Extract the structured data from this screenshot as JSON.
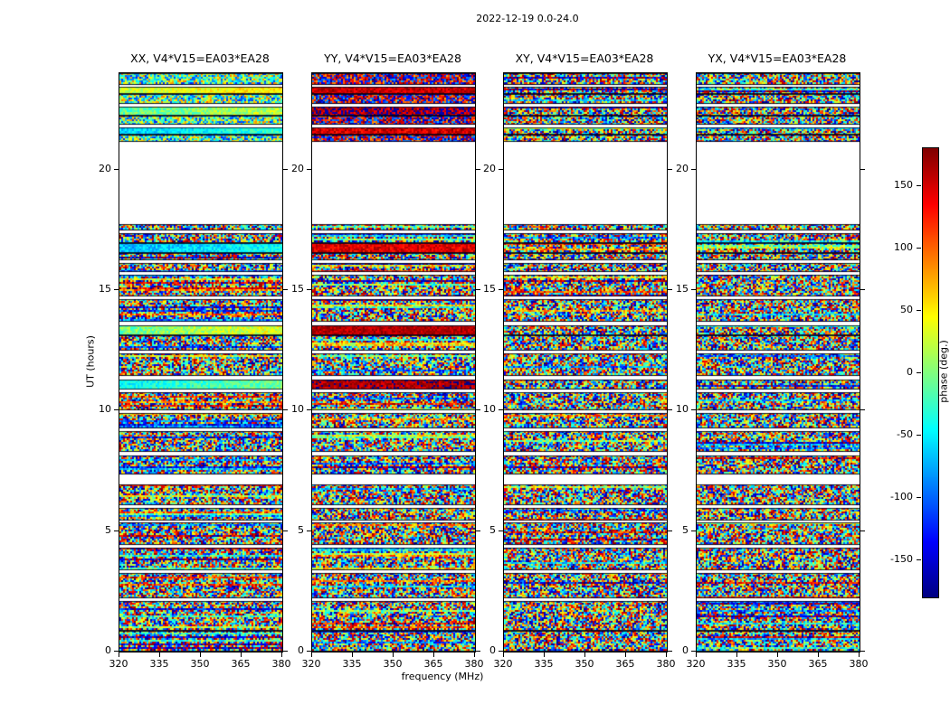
{
  "chart_data": {
    "type": "heatmap",
    "title": "2022-12-19 0.0-24.0",
    "xlabel": "frequency (MHz)",
    "ylabel": "UT (hours)",
    "value_label": "phase (deg.)",
    "colormap": "jet",
    "value_range": [
      -180,
      180
    ],
    "xlim": [
      320,
      380
    ],
    "ylim": [
      0,
      24
    ],
    "x_ticks": [
      320,
      335,
      350,
      365,
      380
    ],
    "y_ticks": [
      0,
      5,
      10,
      15,
      20
    ],
    "colorbar_ticks": [
      150,
      100,
      50,
      0,
      -50,
      -100,
      -150
    ],
    "panels": [
      {
        "label": "XX",
        "title": "XX, V4*V15=EA03*EA28"
      },
      {
        "label": "YY",
        "title": "YY, V4*V15=EA03*EA28"
      },
      {
        "label": "XY",
        "title": "XY, V4*V15=EA03*EA28"
      },
      {
        "label": "YX",
        "title": "YX, V4*V15=EA03*EA28"
      }
    ],
    "bands": [
      {
        "t0": 0.0,
        "t1": 0.85,
        "k": "n"
      },
      {
        "t0": 0.85,
        "t1": 2.1,
        "k": "n"
      },
      {
        "t0": 2.1,
        "t1": 2.22,
        "k": "g"
      },
      {
        "t0": 2.22,
        "t1": 3.25,
        "k": "n"
      },
      {
        "t0": 3.25,
        "t1": 3.38,
        "k": "g"
      },
      {
        "t0": 3.38,
        "t1": 4.3,
        "k": "n"
      },
      {
        "t0": 4.3,
        "t1": 4.42,
        "k": "g"
      },
      {
        "t0": 4.42,
        "t1": 5.35,
        "k": "n"
      },
      {
        "t0": 5.35,
        "t1": 5.45,
        "k": "g"
      },
      {
        "t0": 5.45,
        "t1": 5.95,
        "k": "n"
      },
      {
        "t0": 5.95,
        "t1": 6.07,
        "k": "g"
      },
      {
        "t0": 6.07,
        "t1": 6.95,
        "k": "n"
      },
      {
        "t0": 6.95,
        "t1": 7.35,
        "k": "g"
      },
      {
        "t0": 7.35,
        "t1": 8.15,
        "k": "n"
      },
      {
        "t0": 8.15,
        "t1": 8.28,
        "k": "g"
      },
      {
        "t0": 8.28,
        "t1": 9.15,
        "k": "n"
      },
      {
        "t0": 9.15,
        "t1": 9.28,
        "k": "g"
      },
      {
        "t0": 9.28,
        "t1": 9.9,
        "k": "n"
      },
      {
        "t0": 9.9,
        "t1": 10.02,
        "k": "g"
      },
      {
        "t0": 10.02,
        "t1": 10.78,
        "k": "n"
      },
      {
        "t0": 10.78,
        "t1": 10.88,
        "k": "g"
      },
      {
        "t0": 10.88,
        "t1": 11.3,
        "k": "s",
        "styles": [
          {
            "c": -25,
            "s": 25,
            "d": 40
          },
          {
            "c": 165,
            "s": 25
          },
          {
            "c": 0,
            "s": 180
          },
          {
            "c": 0,
            "s": 180
          }
        ]
      },
      {
        "t0": 11.3,
        "t1": 11.42,
        "k": "g"
      },
      {
        "t0": 11.42,
        "t1": 12.38,
        "k": "n"
      },
      {
        "t0": 12.38,
        "t1": 12.5,
        "k": "g"
      },
      {
        "t0": 12.5,
        "t1": 13.12,
        "k": "n"
      },
      {
        "t0": 13.12,
        "t1": 13.55,
        "k": "s",
        "styles": [
          {
            "c": 15,
            "s": 30,
            "d": 45
          },
          {
            "c": 160,
            "s": 20
          },
          {
            "c": 0,
            "s": 180
          },
          {
            "c": 0,
            "s": 180
          }
        ]
      },
      {
        "t0": 13.55,
        "t1": 13.67,
        "k": "g"
      },
      {
        "t0": 13.67,
        "t1": 14.62,
        "k": "n"
      },
      {
        "t0": 14.62,
        "t1": 14.72,
        "k": "g"
      },
      {
        "t0": 14.72,
        "t1": 15.62,
        "k": "n"
      },
      {
        "t0": 15.62,
        "t1": 15.75,
        "k": "g"
      },
      {
        "t0": 15.75,
        "t1": 16.12,
        "k": "n"
      },
      {
        "t0": 16.12,
        "t1": 16.22,
        "k": "g"
      },
      {
        "t0": 16.22,
        "t1": 16.55,
        "k": "n"
      },
      {
        "t0": 16.55,
        "t1": 16.95,
        "k": "s",
        "styles": [
          {
            "c": -55,
            "s": 25,
            "d": 30
          },
          {
            "c": 145,
            "s": 25
          },
          {
            "c": 0,
            "s": 180
          },
          {
            "c": 0,
            "s": 180
          }
        ]
      },
      {
        "t0": 16.95,
        "t1": 17.38,
        "k": "n"
      },
      {
        "t0": 17.38,
        "t1": 17.46,
        "k": "g"
      },
      {
        "t0": 17.46,
        "t1": 17.72,
        "k": "n"
      },
      {
        "t0": 17.72,
        "t1": 21.15,
        "k": "g"
      },
      {
        "t0": 21.15,
        "t1": 21.45,
        "k": "n",
        "styles": [
          {
            "c": -20,
            "s": 110
          },
          {
            "c": 180,
            "s": 110
          },
          {
            "c": 0,
            "s": 180
          },
          {
            "c": 0,
            "s": 180
          }
        ]
      },
      {
        "t0": 21.45,
        "t1": 21.75,
        "k": "s",
        "styles": [
          {
            "c": -45,
            "s": 25,
            "d": 35
          },
          {
            "c": 150,
            "s": 30
          },
          {
            "c": 0,
            "s": 180
          },
          {
            "c": 0,
            "s": 180
          }
        ]
      },
      {
        "t0": 21.75,
        "t1": 21.85,
        "k": "g"
      },
      {
        "t0": 21.85,
        "t1": 22.25,
        "k": "n",
        "styles": [
          {
            "c": -15,
            "s": 110
          },
          {
            "c": 180,
            "s": 110
          },
          {
            "c": 0,
            "s": 180
          },
          {
            "c": 0,
            "s": 180
          }
        ]
      },
      {
        "t0": 22.25,
        "t1": 22.6,
        "k": "s",
        "styles": [
          {
            "c": 5,
            "s": 30,
            "d": 35
          },
          {
            "c": 170,
            "s": 40
          },
          {
            "c": 0,
            "s": 180
          },
          {
            "c": 0,
            "s": 180
          }
        ]
      },
      {
        "t0": 22.6,
        "t1": 22.72,
        "k": "g"
      },
      {
        "t0": 22.72,
        "t1": 23.12,
        "k": "n",
        "styles": [
          {
            "c": -10,
            "s": 110
          },
          {
            "c": 180,
            "s": 110
          },
          {
            "c": 0,
            "s": 180
          },
          {
            "c": 0,
            "s": 180
          }
        ]
      },
      {
        "t0": 23.12,
        "t1": 23.42,
        "k": "s",
        "styles": [
          {
            "c": 40,
            "s": 25,
            "d": 30
          },
          {
            "c": 155,
            "s": 25
          },
          {
            "c": 0,
            "s": 180
          },
          {
            "c": 0,
            "s": 180
          }
        ]
      },
      {
        "t0": 23.42,
        "t1": 23.52,
        "k": "g"
      },
      {
        "t0": 23.52,
        "t1": 24.0,
        "k": "n",
        "styles": [
          {
            "c": -15,
            "s": 110
          },
          {
            "c": 180,
            "s": 110
          },
          {
            "c": 0,
            "s": 180
          },
          {
            "c": 0,
            "s": 180
          }
        ]
      }
    ]
  }
}
